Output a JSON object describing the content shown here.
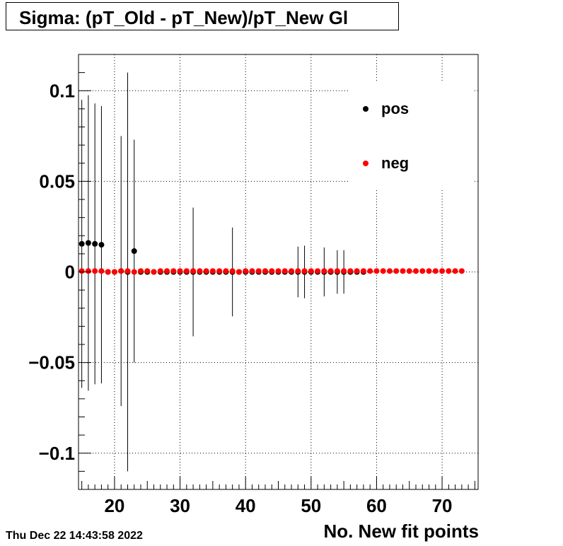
{
  "title": "Sigma: (pT_Old - pT_New)/pT_New Gl",
  "timestamp": "Thu Dec 22 14:43:58 2022",
  "chart_data": {
    "type": "scatter",
    "xlabel": "No. New fit points",
    "ylabel": "",
    "xlim": [
      14.5,
      75.5
    ],
    "ylim": [
      -0.12,
      0.12
    ],
    "grid": true,
    "legend_position": "top-right",
    "x_ticks": [
      20,
      30,
      40,
      50,
      60,
      70
    ],
    "x_tick_labels": [
      "20",
      "30",
      "40",
      "50",
      "60",
      "70"
    ],
    "y_ticks": [
      -0.1,
      -0.05,
      0,
      0.05,
      0.1
    ],
    "y_tick_labels": [
      "−0.1",
      "−0.05",
      "0",
      "0.05",
      "0.1"
    ],
    "series": [
      {
        "name": "pos",
        "color": "#000000",
        "points": [
          [
            15,
            0.0155,
            0.0795
          ],
          [
            16,
            0.016,
            0.0815
          ],
          [
            17,
            0.0155,
            0.0775
          ],
          [
            18,
            0.015,
            0.0765
          ],
          [
            19,
            0.0,
            0.0
          ],
          [
            20,
            0.0,
            0.0
          ],
          [
            21,
            0.0005,
            0.0745
          ],
          [
            22,
            0.0,
            0.11
          ],
          [
            23,
            0.0115,
            0.0615
          ],
          [
            24,
            0.0,
            0.0
          ],
          [
            25,
            0.0,
            0.0
          ],
          [
            26,
            0.0,
            0.0
          ],
          [
            27,
            0.0,
            0.0
          ],
          [
            28,
            0.0,
            0.0
          ],
          [
            29,
            0.0,
            0.0
          ],
          [
            30,
            0.0,
            0.0
          ],
          [
            31,
            0.0,
            0.0
          ],
          [
            32,
            0.0,
            0.0355
          ],
          [
            33,
            0.0,
            0.0
          ],
          [
            34,
            0.0,
            0.0
          ],
          [
            35,
            0.0,
            0.0
          ],
          [
            36,
            0.0,
            0.0
          ],
          [
            37,
            0.0,
            0.0
          ],
          [
            38,
            0.0,
            0.0245
          ],
          [
            39,
            0.0,
            0.0
          ],
          [
            40,
            0.0,
            0.0
          ],
          [
            41,
            0.0,
            0.0
          ],
          [
            42,
            0.0,
            0.0
          ],
          [
            43,
            0.0,
            0.0
          ],
          [
            44,
            0.0,
            0.0
          ],
          [
            45,
            0.0,
            0.0
          ],
          [
            46,
            0.0,
            0.0
          ],
          [
            47,
            0.0,
            0.0
          ],
          [
            48,
            0.0,
            0.014
          ],
          [
            49,
            0.0,
            0.0145
          ],
          [
            50,
            0.0,
            0.0
          ],
          [
            51,
            0.0,
            0.0
          ],
          [
            52,
            0.0,
            0.0135
          ],
          [
            53,
            0.0,
            0.0
          ],
          [
            54,
            0.0,
            0.012
          ],
          [
            55,
            0.0,
            0.012
          ],
          [
            56,
            0.0,
            0.0
          ],
          [
            57,
            0.0,
            0.0
          ],
          [
            58,
            0.0,
            0.0
          ]
        ]
      },
      {
        "name": "neg",
        "color": "#ff0000",
        "points": [
          [
            15,
            0.0005,
            0
          ],
          [
            16,
            0.0005,
            0
          ],
          [
            17,
            0.0005,
            0
          ],
          [
            18,
            0.0005,
            0
          ],
          [
            19,
            0.0,
            0
          ],
          [
            20,
            0.0,
            0
          ],
          [
            21,
            0.0005,
            0
          ],
          [
            22,
            0.0005,
            0
          ],
          [
            23,
            0.0,
            0
          ],
          [
            24,
            0.0005,
            0
          ],
          [
            25,
            0.0005,
            0
          ],
          [
            26,
            0.0,
            0
          ],
          [
            27,
            0.0005,
            0
          ],
          [
            28,
            0.0005,
            0
          ],
          [
            29,
            0.0005,
            0
          ],
          [
            30,
            0.0005,
            0
          ],
          [
            31,
            0.0005,
            0
          ],
          [
            32,
            0.0005,
            0
          ],
          [
            33,
            0.0005,
            0
          ],
          [
            34,
            0.0005,
            0
          ],
          [
            35,
            0.0005,
            0
          ],
          [
            36,
            0.0005,
            0
          ],
          [
            37,
            0.0005,
            0
          ],
          [
            38,
            0.0005,
            0
          ],
          [
            39,
            0.0,
            0
          ],
          [
            40,
            0.0005,
            0
          ],
          [
            41,
            0.0005,
            0
          ],
          [
            42,
            0.0005,
            0
          ],
          [
            43,
            0.0005,
            0
          ],
          [
            44,
            0.0005,
            0
          ],
          [
            45,
            0.0005,
            0
          ],
          [
            46,
            0.0005,
            0
          ],
          [
            47,
            0.0005,
            0
          ],
          [
            48,
            0.0005,
            0
          ],
          [
            49,
            0.0005,
            0
          ],
          [
            50,
            0.0005,
            0
          ],
          [
            51,
            0.0005,
            0
          ],
          [
            52,
            0.0005,
            0
          ],
          [
            53,
            0.0005,
            0
          ],
          [
            54,
            0.0005,
            0
          ],
          [
            55,
            0.0005,
            0
          ],
          [
            56,
            0.0005,
            0
          ],
          [
            57,
            0.0005,
            0
          ],
          [
            58,
            0.0005,
            0
          ],
          [
            59,
            0.0005,
            0
          ],
          [
            60,
            0.0005,
            0
          ],
          [
            61,
            0.0005,
            0
          ],
          [
            62,
            0.0005,
            0
          ],
          [
            63,
            0.0005,
            0
          ],
          [
            64,
            0.0005,
            0
          ],
          [
            65,
            0.0005,
            0
          ],
          [
            66,
            0.0005,
            0
          ],
          [
            67,
            0.0005,
            0
          ],
          [
            68,
            0.0005,
            0
          ],
          [
            69,
            0.0005,
            0
          ],
          [
            70,
            0.0005,
            0
          ],
          [
            71,
            0.0005,
            0
          ],
          [
            72,
            0.0005,
            0
          ],
          [
            73,
            0.0005,
            0
          ]
        ]
      }
    ]
  }
}
